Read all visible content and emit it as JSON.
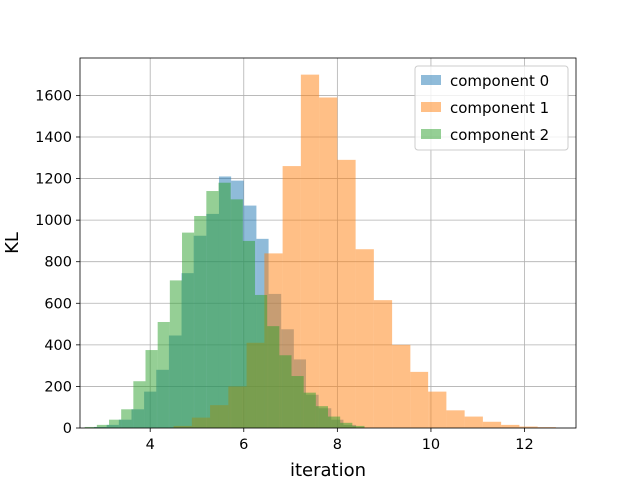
{
  "chart_data": {
    "type": "bar",
    "title": "",
    "xlabel": "iteration",
    "ylabel": "KL",
    "xlim": [
      2.5,
      13.1
    ],
    "ylim": [
      0,
      1780
    ],
    "xticks": [
      4,
      6,
      8,
      10,
      12
    ],
    "yticks": [
      0,
      200,
      400,
      600,
      800,
      1000,
      1200,
      1400,
      1600
    ],
    "grid": true,
    "legend_position": "top-right",
    "series": [
      {
        "name": "component 0",
        "color": "#1f77b4",
        "opacity": 0.5,
        "bins": [
          {
            "x0": 2.8,
            "x1": 3.07,
            "v": 5
          },
          {
            "x0": 3.07,
            "x1": 3.33,
            "v": 15
          },
          {
            "x0": 3.33,
            "x1": 3.6,
            "v": 40
          },
          {
            "x0": 3.6,
            "x1": 3.87,
            "v": 90
          },
          {
            "x0": 3.87,
            "x1": 4.13,
            "v": 175
          },
          {
            "x0": 4.13,
            "x1": 4.4,
            "v": 280
          },
          {
            "x0": 4.4,
            "x1": 4.67,
            "v": 445
          },
          {
            "x0": 4.67,
            "x1": 4.93,
            "v": 745
          },
          {
            "x0": 4.93,
            "x1": 5.2,
            "v": 925
          },
          {
            "x0": 5.2,
            "x1": 5.47,
            "v": 1030
          },
          {
            "x0": 5.47,
            "x1": 5.73,
            "v": 1210
          },
          {
            "x0": 5.73,
            "x1": 6.0,
            "v": 1190
          },
          {
            "x0": 6.0,
            "x1": 6.27,
            "v": 1070
          },
          {
            "x0": 6.27,
            "x1": 6.53,
            "v": 910
          },
          {
            "x0": 6.53,
            "x1": 6.8,
            "v": 645
          },
          {
            "x0": 6.8,
            "x1": 7.07,
            "v": 475
          },
          {
            "x0": 7.07,
            "x1": 7.33,
            "v": 330
          },
          {
            "x0": 7.33,
            "x1": 7.6,
            "v": 160
          },
          {
            "x0": 7.6,
            "x1": 7.87,
            "v": 95
          },
          {
            "x0": 7.87,
            "x1": 8.13,
            "v": 40
          },
          {
            "x0": 8.13,
            "x1": 8.4,
            "v": 15
          }
        ]
      },
      {
        "name": "component 1",
        "color": "#ff7f0e",
        "opacity": 0.5,
        "bins": [
          {
            "x0": 4.5,
            "x1": 4.89,
            "v": 10
          },
          {
            "x0": 4.89,
            "x1": 5.28,
            "v": 50
          },
          {
            "x0": 5.28,
            "x1": 5.67,
            "v": 110
          },
          {
            "x0": 5.67,
            "x1": 6.06,
            "v": 200
          },
          {
            "x0": 6.06,
            "x1": 6.44,
            "v": 410
          },
          {
            "x0": 6.44,
            "x1": 6.83,
            "v": 840
          },
          {
            "x0": 6.83,
            "x1": 7.22,
            "v": 1260
          },
          {
            "x0": 7.22,
            "x1": 7.61,
            "v": 1700
          },
          {
            "x0": 7.61,
            "x1": 8.0,
            "v": 1590
          },
          {
            "x0": 8.0,
            "x1": 8.39,
            "v": 1290
          },
          {
            "x0": 8.39,
            "x1": 8.78,
            "v": 860
          },
          {
            "x0": 8.78,
            "x1": 9.17,
            "v": 615
          },
          {
            "x0": 9.17,
            "x1": 9.56,
            "v": 400
          },
          {
            "x0": 9.56,
            "x1": 9.94,
            "v": 270
          },
          {
            "x0": 9.94,
            "x1": 10.33,
            "v": 175
          },
          {
            "x0": 10.33,
            "x1": 10.72,
            "v": 85
          },
          {
            "x0": 10.72,
            "x1": 11.11,
            "v": 55
          },
          {
            "x0": 11.11,
            "x1": 11.5,
            "v": 30
          },
          {
            "x0": 11.5,
            "x1": 11.89,
            "v": 15
          },
          {
            "x0": 11.89,
            "x1": 12.28,
            "v": 7
          },
          {
            "x0": 12.28,
            "x1": 12.67,
            "v": 4
          }
        ]
      },
      {
        "name": "component 2",
        "color": "#2ca02c",
        "opacity": 0.5,
        "bins": [
          {
            "x0": 2.6,
            "x1": 2.86,
            "v": 5
          },
          {
            "x0": 2.86,
            "x1": 3.12,
            "v": 15
          },
          {
            "x0": 3.12,
            "x1": 3.38,
            "v": 40
          },
          {
            "x0": 3.38,
            "x1": 3.64,
            "v": 90
          },
          {
            "x0": 3.64,
            "x1": 3.9,
            "v": 225
          },
          {
            "x0": 3.9,
            "x1": 4.16,
            "v": 375
          },
          {
            "x0": 4.16,
            "x1": 4.42,
            "v": 510
          },
          {
            "x0": 4.42,
            "x1": 4.68,
            "v": 710
          },
          {
            "x0": 4.68,
            "x1": 4.94,
            "v": 940
          },
          {
            "x0": 4.94,
            "x1": 5.2,
            "v": 1020
          },
          {
            "x0": 5.2,
            "x1": 5.46,
            "v": 1140
          },
          {
            "x0": 5.46,
            "x1": 5.72,
            "v": 1180
          },
          {
            "x0": 5.72,
            "x1": 5.98,
            "v": 1100
          },
          {
            "x0": 5.98,
            "x1": 6.24,
            "v": 900
          },
          {
            "x0": 6.24,
            "x1": 6.5,
            "v": 640
          },
          {
            "x0": 6.5,
            "x1": 6.76,
            "v": 490
          },
          {
            "x0": 6.76,
            "x1": 7.02,
            "v": 350
          },
          {
            "x0": 7.02,
            "x1": 7.28,
            "v": 250
          },
          {
            "x0": 7.28,
            "x1": 7.54,
            "v": 170
          },
          {
            "x0": 7.54,
            "x1": 7.8,
            "v": 105
          },
          {
            "x0": 7.8,
            "x1": 8.06,
            "v": 55
          },
          {
            "x0": 8.06,
            "x1": 8.32,
            "v": 25
          },
          {
            "x0": 8.32,
            "x1": 8.58,
            "v": 10
          }
        ]
      }
    ]
  }
}
